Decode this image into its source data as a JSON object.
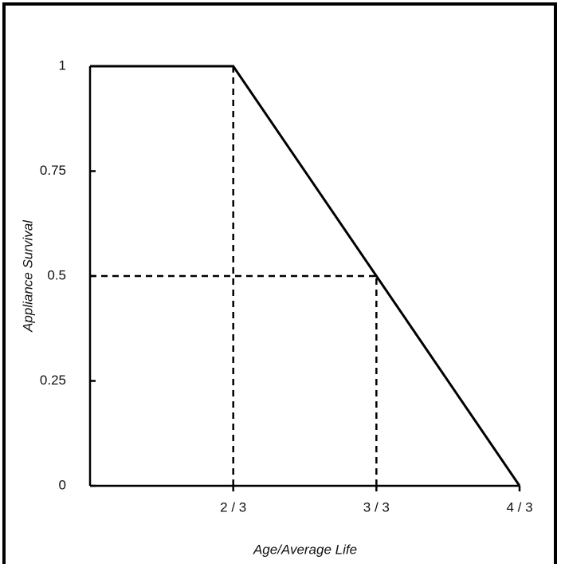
{
  "chart_data": {
    "type": "line",
    "x_label": "Age/Average Life",
    "y_label": "Appliance Survival",
    "series": [
      {
        "color": "#000000",
        "x": [
          0.3333,
          0.6667,
          1.3333
        ],
        "values": [
          1,
          1,
          0
        ]
      }
    ],
    "xlim": [
      0.3333,
      1.3333
    ],
    "xticks": [
      {
        "value": 0.6667,
        "label": "2 / 3"
      },
      {
        "value": 1,
        "label": "3 / 3"
      },
      {
        "value": 1.3333,
        "label": "4 / 3"
      }
    ],
    "ylim": [
      0,
      1
    ],
    "yticks": [
      0,
      0.25,
      0.5,
      0.75,
      1
    ],
    "reference_lines": [
      {
        "x": [
          0.6667,
          0.6667
        ],
        "y": [
          0,
          1
        ]
      },
      {
        "x": [
          0.3333,
          1
        ],
        "y": [
          0.5,
          0.5
        ]
      },
      {
        "x": [
          1,
          1
        ],
        "y": [
          0,
          0.5
        ]
      }
    ],
    "grid": false
  }
}
